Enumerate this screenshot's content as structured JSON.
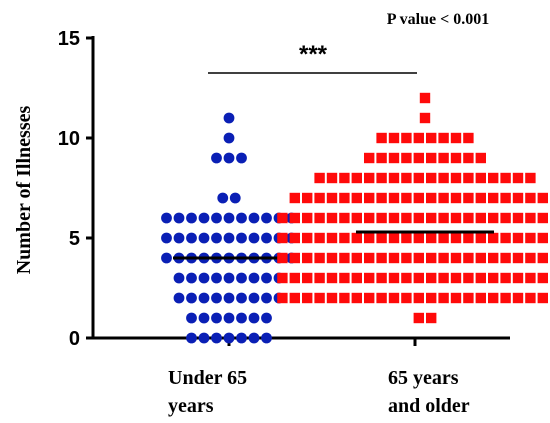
{
  "chart_data": {
    "type": "scatter",
    "subtype": "dot-plot",
    "ylabel": "Number of Illnesses",
    "ylim": [
      0,
      15
    ],
    "yticks": [
      "0",
      "5",
      "10",
      "15"
    ],
    "annotation": "P value < 0.001",
    "significance_marker": "***",
    "grid": false,
    "categories": [
      "Under 65 years",
      "65 years and older"
    ],
    "category_tick_lines": [
      [
        "Under 65",
        "years"
      ],
      [
        "65     years",
        "and older"
      ]
    ],
    "series": [
      {
        "marker": "circle",
        "color": "#0a1fb5",
        "mean": 4.0,
        "points": [
          {
            "y": 11,
            "n": 1
          },
          {
            "y": 10,
            "n": 1
          },
          {
            "y": 9,
            "n": 3
          },
          {
            "y": 7,
            "n": 2
          },
          {
            "y": 6,
            "n": 11
          },
          {
            "y": 5,
            "n": 11
          },
          {
            "y": 4,
            "n": 11
          },
          {
            "y": 3,
            "n": 9
          },
          {
            "y": 2,
            "n": 9
          },
          {
            "y": 1,
            "n": 7
          },
          {
            "y": 0,
            "n": 7
          }
        ]
      },
      {
        "marker": "square",
        "color": "#ff0a0a",
        "mean": 5.3,
        "points": [
          {
            "y": 12,
            "n": 1
          },
          {
            "y": 11,
            "n": 1
          },
          {
            "y": 10,
            "n": 8
          },
          {
            "y": 9,
            "n": 10
          },
          {
            "y": 8,
            "n": 18
          },
          {
            "y": 7,
            "n": 22
          },
          {
            "y": 6,
            "n": 24
          },
          {
            "y": 5,
            "n": 24
          },
          {
            "y": 4,
            "n": 24
          },
          {
            "y": 3,
            "n": 24
          },
          {
            "y": 2,
            "n": 24
          },
          {
            "y": 1,
            "n": 2
          }
        ]
      }
    ]
  }
}
